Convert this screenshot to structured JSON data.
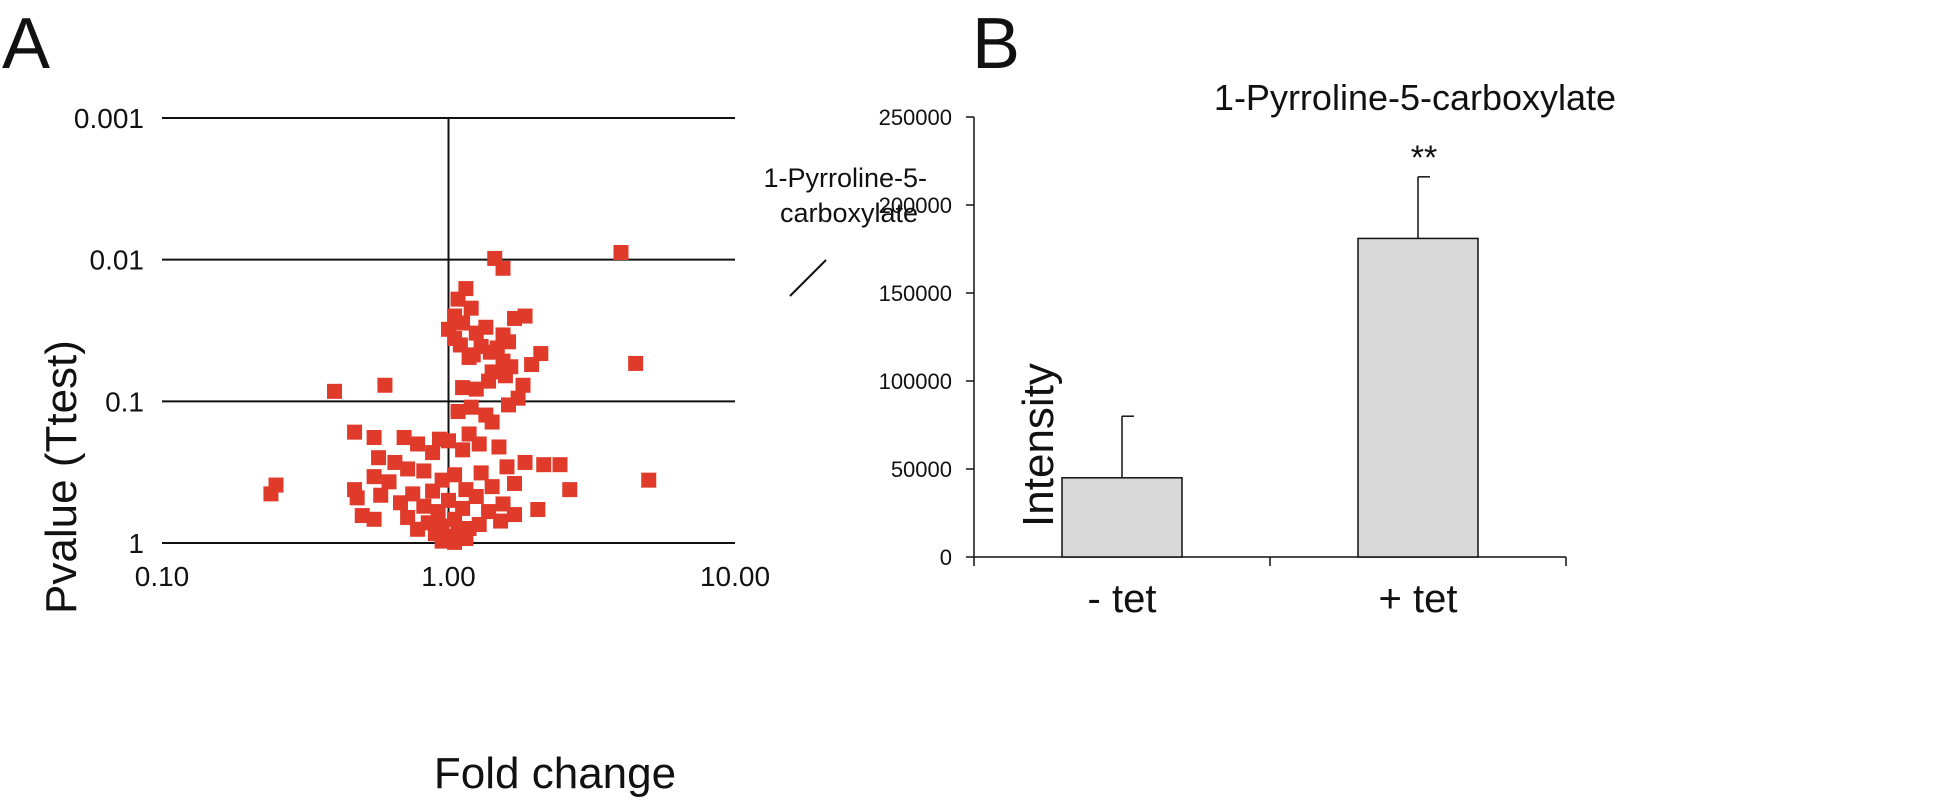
{
  "chart_data": [
    {
      "panel": "A",
      "type": "scatter",
      "xlabel": "Fold change",
      "ylabel": "Pvalue (Ttest)",
      "x_scale": "log",
      "y_scale": "log-reversed",
      "xlim": [
        0.1,
        10
      ],
      "ylim": [
        1,
        0.001
      ],
      "x_ticks": [
        0.1,
        1,
        10
      ],
      "x_tick_labels": [
        "0.10",
        "1.00",
        "10.00"
      ],
      "y_ticks": [
        0.001,
        0.01,
        0.1,
        1
      ],
      "y_tick_labels": [
        "0.001",
        "0.01",
        "0.1",
        "1"
      ],
      "grid": "horizontal at y ticks, vertical at x = 1",
      "marker_color": "#e03a2b",
      "annotation": {
        "text_lines": [
          "1-Pyrroline-5-",
          "carboxylate"
        ],
        "x": 4.0,
        "y": 0.0089
      },
      "points": [
        {
          "x": 4.0,
          "y": 0.0089
        },
        {
          "x": 1.45,
          "y": 0.0098
        },
        {
          "x": 1.55,
          "y": 0.0115
        },
        {
          "x": 1.15,
          "y": 0.016
        },
        {
          "x": 1.08,
          "y": 0.019
        },
        {
          "x": 1.2,
          "y": 0.022
        },
        {
          "x": 1.05,
          "y": 0.025
        },
        {
          "x": 1.7,
          "y": 0.026
        },
        {
          "x": 1.12,
          "y": 0.028
        },
        {
          "x": 1.85,
          "y": 0.025
        },
        {
          "x": 1.35,
          "y": 0.03
        },
        {
          "x": 1.0,
          "y": 0.031
        },
        {
          "x": 1.25,
          "y": 0.033
        },
        {
          "x": 1.55,
          "y": 0.034
        },
        {
          "x": 1.05,
          "y": 0.036
        },
        {
          "x": 1.62,
          "y": 0.038
        },
        {
          "x": 1.1,
          "y": 0.04
        },
        {
          "x": 1.3,
          "y": 0.041
        },
        {
          "x": 1.48,
          "y": 0.042
        },
        {
          "x": 2.1,
          "y": 0.046
        },
        {
          "x": 1.4,
          "y": 0.045
        },
        {
          "x": 1.22,
          "y": 0.047
        },
        {
          "x": 1.18,
          "y": 0.049
        },
        {
          "x": 1.55,
          "y": 0.052
        },
        {
          "x": 4.5,
          "y": 0.054
        },
        {
          "x": 1.95,
          "y": 0.055
        },
        {
          "x": 1.65,
          "y": 0.057
        },
        {
          "x": 1.42,
          "y": 0.062
        },
        {
          "x": 1.58,
          "y": 0.066
        },
        {
          "x": 1.38,
          "y": 0.072
        },
        {
          "x": 1.82,
          "y": 0.077
        },
        {
          "x": 1.12,
          "y": 0.08
        },
        {
          "x": 1.25,
          "y": 0.082
        },
        {
          "x": 0.4,
          "y": 0.085
        },
        {
          "x": 0.6,
          "y": 0.077
        },
        {
          "x": 1.75,
          "y": 0.095
        },
        {
          "x": 1.62,
          "y": 0.106
        },
        {
          "x": 1.2,
          "y": 0.11
        },
        {
          "x": 1.35,
          "y": 0.125
        },
        {
          "x": 1.08,
          "y": 0.118
        },
        {
          "x": 1.42,
          "y": 0.14
        },
        {
          "x": 1.18,
          "y": 0.17
        },
        {
          "x": 0.47,
          "y": 0.165
        },
        {
          "x": 0.55,
          "y": 0.18
        },
        {
          "x": 0.7,
          "y": 0.18
        },
        {
          "x": 0.93,
          "y": 0.185
        },
        {
          "x": 1.0,
          "y": 0.19
        },
        {
          "x": 1.28,
          "y": 0.2
        },
        {
          "x": 0.78,
          "y": 0.2
        },
        {
          "x": 1.5,
          "y": 0.21
        },
        {
          "x": 1.12,
          "y": 0.22
        },
        {
          "x": 0.88,
          "y": 0.23
        },
        {
          "x": 0.57,
          "y": 0.25
        },
        {
          "x": 0.65,
          "y": 0.27
        },
        {
          "x": 1.85,
          "y": 0.27
        },
        {
          "x": 2.45,
          "y": 0.28
        },
        {
          "x": 2.15,
          "y": 0.28
        },
        {
          "x": 1.6,
          "y": 0.29
        },
        {
          "x": 0.72,
          "y": 0.3
        },
        {
          "x": 0.82,
          "y": 0.31
        },
        {
          "x": 1.3,
          "y": 0.32
        },
        {
          "x": 1.05,
          "y": 0.33
        },
        {
          "x": 0.55,
          "y": 0.34
        },
        {
          "x": 0.95,
          "y": 0.36
        },
        {
          "x": 5.0,
          "y": 0.36
        },
        {
          "x": 0.62,
          "y": 0.37
        },
        {
          "x": 0.25,
          "y": 0.39
        },
        {
          "x": 1.7,
          "y": 0.38
        },
        {
          "x": 1.42,
          "y": 0.4
        },
        {
          "x": 2.65,
          "y": 0.42
        },
        {
          "x": 0.47,
          "y": 0.42
        },
        {
          "x": 1.15,
          "y": 0.42
        },
        {
          "x": 0.88,
          "y": 0.43
        },
        {
          "x": 0.24,
          "y": 0.45
        },
        {
          "x": 0.75,
          "y": 0.45
        },
        {
          "x": 0.58,
          "y": 0.46
        },
        {
          "x": 1.25,
          "y": 0.47
        },
        {
          "x": 0.48,
          "y": 0.48
        },
        {
          "x": 1.0,
          "y": 0.5
        },
        {
          "x": 0.68,
          "y": 0.52
        },
        {
          "x": 1.55,
          "y": 0.53
        },
        {
          "x": 0.82,
          "y": 0.55
        },
        {
          "x": 1.12,
          "y": 0.57
        },
        {
          "x": 2.05,
          "y": 0.58
        },
        {
          "x": 0.92,
          "y": 0.6
        },
        {
          "x": 1.38,
          "y": 0.6
        },
        {
          "x": 0.5,
          "y": 0.64
        },
        {
          "x": 1.7,
          "y": 0.63
        },
        {
          "x": 0.72,
          "y": 0.66
        },
        {
          "x": 0.55,
          "y": 0.68
        },
        {
          "x": 1.05,
          "y": 0.68
        },
        {
          "x": 1.52,
          "y": 0.7
        },
        {
          "x": 0.85,
          "y": 0.72
        },
        {
          "x": 1.28,
          "y": 0.74
        },
        {
          "x": 0.95,
          "y": 0.76
        },
        {
          "x": 1.18,
          "y": 0.79
        },
        {
          "x": 0.78,
          "y": 0.8
        },
        {
          "x": 1.08,
          "y": 0.83
        },
        {
          "x": 0.9,
          "y": 0.86
        },
        {
          "x": 1.0,
          "y": 0.9
        },
        {
          "x": 1.15,
          "y": 0.93
        },
        {
          "x": 0.95,
          "y": 0.97
        },
        {
          "x": 1.05,
          "y": 0.99
        }
      ]
    },
    {
      "panel": "B",
      "type": "bar",
      "title": "1-Pyrroline-5-carboxylate",
      "xlabel": "",
      "ylabel": "Intensity",
      "ylim": [
        0,
        250000
      ],
      "y_ticks": [
        0,
        50000,
        100000,
        150000,
        200000,
        250000
      ],
      "y_tick_labels": [
        "0",
        "50000",
        "100000",
        "150000",
        "200000",
        "250000"
      ],
      "categories": [
        "- tet",
        "+ tet"
      ],
      "values": [
        45000,
        181000
      ],
      "error_upper": [
        80000,
        216000
      ],
      "significance": [
        "",
        "**"
      ],
      "bar_color": "#d9d9d9",
      "grid": false
    }
  ]
}
